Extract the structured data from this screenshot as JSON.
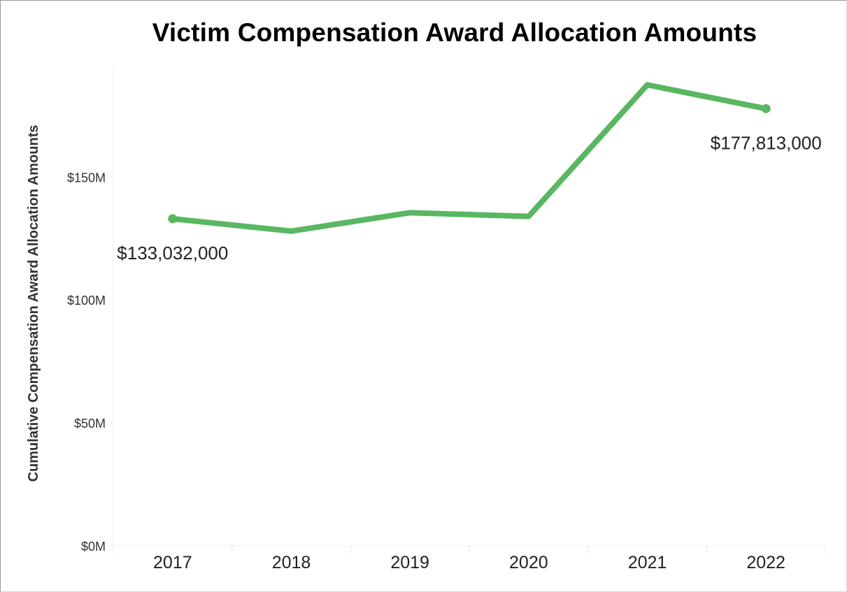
{
  "chart_data": {
    "type": "line",
    "title": "Victim Compensation Award Allocation Amounts",
    "xlabel": "",
    "ylabel": "Cumulative Compensation Award Allocation Amounts",
    "categories": [
      "2017",
      "2018",
      "2019",
      "2020",
      "2021",
      "2022"
    ],
    "series": [
      {
        "values": [
          133032000,
          128000000,
          135500000,
          134000000,
          187500000,
          177813000
        ],
        "color": "#59b761"
      }
    ],
    "ylim": [
      0,
      195000000
    ],
    "y_ticks": [
      {
        "value": 0,
        "label": "$0M"
      },
      {
        "value": 50000000,
        "label": "$50M"
      },
      {
        "value": 100000000,
        "label": "$100M"
      },
      {
        "value": 150000000,
        "label": "$150M"
      }
    ],
    "data_labels": [
      {
        "index": 0,
        "text": "$133,032,000"
      },
      {
        "index": 5,
        "text": "$177,813,000"
      }
    ],
    "endpoint_markers": true,
    "grid": false,
    "legend": "none"
  }
}
